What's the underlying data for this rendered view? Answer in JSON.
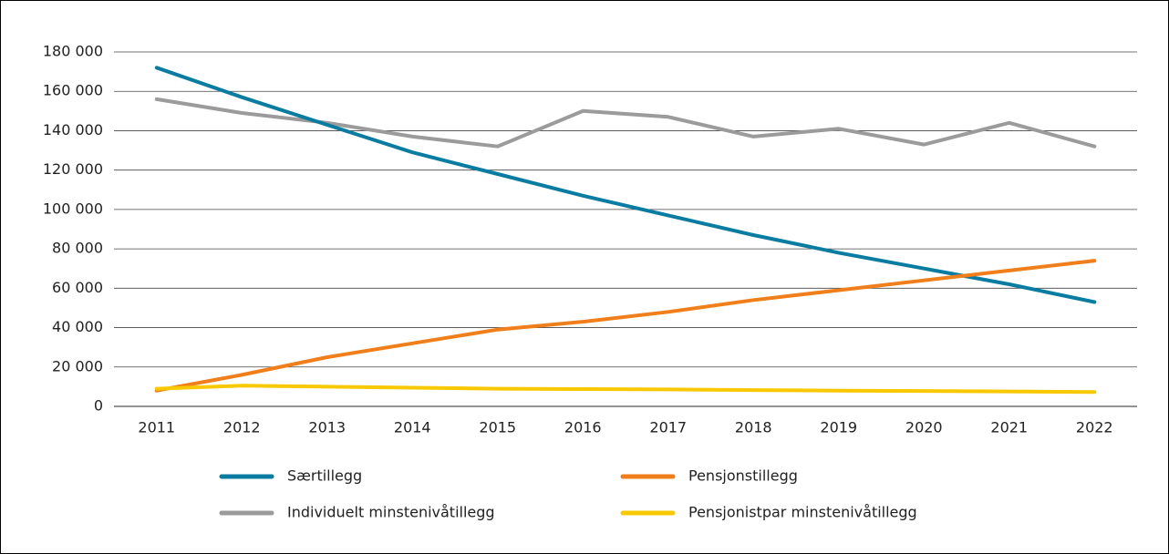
{
  "chart_data": {
    "type": "line",
    "categories": [
      "2011",
      "2012",
      "2013",
      "2014",
      "2015",
      "2016",
      "2017",
      "2018",
      "2019",
      "2020",
      "2021",
      "2022"
    ],
    "series": [
      {
        "name": "Særtillegg",
        "color": "#0a7ca1",
        "values": [
          172000,
          157000,
          143000,
          129000,
          118000,
          107000,
          97000,
          87000,
          78000,
          70000,
          62000,
          53000
        ]
      },
      {
        "name": "Pensjonstillegg",
        "color": "#f07f1b",
        "values": [
          8000,
          16000,
          25000,
          32000,
          39000,
          43000,
          48000,
          54000,
          59000,
          64000,
          69000,
          74000
        ]
      },
      {
        "name": "Individuelt minstenivåtillegg",
        "color": "#9b9b9b",
        "values": [
          156000,
          149000,
          144000,
          137000,
          132000,
          150000,
          147000,
          137000,
          141000,
          133000,
          144000,
          132000
        ]
      },
      {
        "name": "Pensjonistpar minstenivåtillegg",
        "color": "#f8c800",
        "values": [
          9000,
          10500,
          10000,
          9500,
          9000,
          8800,
          8600,
          8300,
          8000,
          7800,
          7600,
          7300
        ]
      }
    ],
    "ylim": [
      0,
      180000
    ],
    "yticks": [
      0,
      {
        "value": 20000,
        "label": "20 000"
      },
      {
        "value": 40000,
        "label": "40 000"
      },
      {
        "value": 60000,
        "label": "60 000"
      },
      {
        "value": 80000,
        "label": "80 000"
      },
      {
        "value": 100000,
        "label": "100 000"
      },
      {
        "value": 120000,
        "label": "120 000"
      },
      {
        "value": 140000,
        "label": "140 000"
      },
      {
        "value": 160000,
        "label": "160 000"
      },
      {
        "value": 180000,
        "label": "180 000"
      }
    ],
    "grid": true,
    "legend": "bottom"
  }
}
